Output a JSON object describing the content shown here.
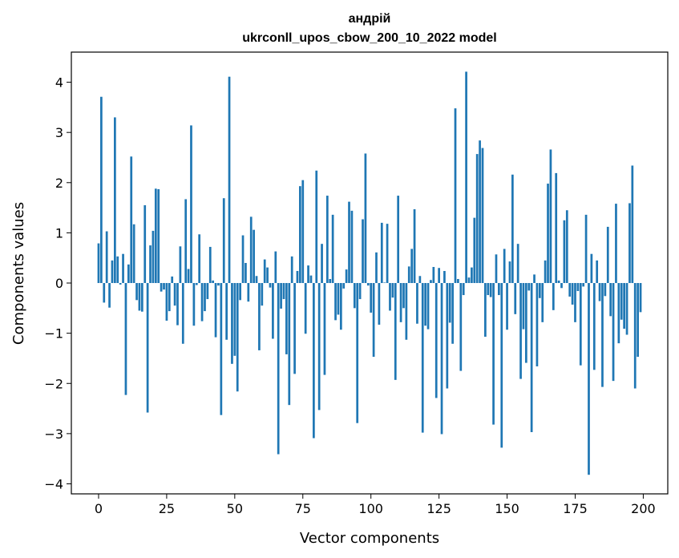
{
  "chart_data": {
    "type": "bar",
    "title": "андрій",
    "subtitle": "ukrconll_upos_cbow_200_10_2022 model",
    "xlabel": "Vector components",
    "ylabel": "Components values",
    "xlim": [
      -10,
      209
    ],
    "ylim": [
      -4.2,
      4.6
    ],
    "xticks": [
      0,
      25,
      50,
      75,
      100,
      125,
      150,
      175,
      200
    ],
    "yticks": [
      -4,
      -3,
      -2,
      -1,
      0,
      1,
      2,
      3,
      4
    ],
    "xtick_labels": [
      "0",
      "25",
      "50",
      "75",
      "100",
      "125",
      "150",
      "175",
      "200"
    ],
    "ytick_labels": [
      "−4",
      "−3",
      "−2",
      "−1",
      "0",
      "1",
      "2",
      "3",
      "4"
    ],
    "grid": false,
    "color": "#1f77b4",
    "x_start": 0,
    "values": [
      0.79,
      3.71,
      -0.39,
      1.03,
      -0.49,
      0.45,
      3.3,
      0.53,
      -0.03,
      0.58,
      -2.23,
      0.37,
      2.52,
      1.17,
      -0.34,
      -0.55,
      -0.57,
      1.55,
      -2.58,
      0.75,
      1.04,
      1.88,
      1.87,
      -0.17,
      -0.13,
      -0.75,
      -0.56,
      0.13,
      -0.45,
      -0.84,
      0.73,
      -1.21,
      1.67,
      0.28,
      3.14,
      -0.85,
      -0.04,
      0.97,
      -0.76,
      -0.56,
      -0.32,
      0.72,
      0.05,
      -1.08,
      -0.05,
      -2.63,
      1.69,
      -1.13,
      4.11,
      -1.61,
      -1.45,
      -2.16,
      -0.34,
      0.95,
      0.4,
      -0.37,
      1.32,
      1.06,
      0.14,
      -1.34,
      -0.45,
      0.47,
      0.31,
      -0.09,
      -1.11,
      0.63,
      -3.41,
      -0.51,
      -0.32,
      -1.42,
      -2.43,
      0.53,
      -1.81,
      0.24,
      1.93,
      2.05,
      -1.01,
      0.35,
      0.15,
      -3.09,
      2.24,
      -2.53,
      0.78,
      -1.83,
      1.74,
      0.08,
      1.36,
      -0.74,
      -0.63,
      -0.93,
      -0.11,
      0.27,
      1.62,
      1.44,
      -0.5,
      -2.79,
      -0.32,
      1.27,
      2.58,
      -0.05,
      -0.59,
      -1.47,
      0.61,
      -0.83,
      1.2,
      0.01,
      1.18,
      -0.55,
      -0.29,
      -1.93,
      1.74,
      -0.78,
      -0.5,
      -1.13,
      0.33,
      0.68,
      1.47,
      -0.81,
      0.14,
      -2.98,
      -0.85,
      -0.92,
      0.06,
      0.32,
      -2.29,
      0.3,
      -3.01,
      0.24,
      -2.1,
      -0.79,
      -1.21,
      3.48,
      0.08,
      -1.75,
      -0.24,
      4.21,
      0.11,
      0.31,
      1.3,
      2.57,
      2.84,
      2.69,
      -1.07,
      -0.24,
      -0.28,
      -2.82,
      0.57,
      -0.24,
      -3.28,
      0.68,
      -0.93,
      0.43,
      2.16,
      -0.62,
      0.78,
      -1.91,
      -0.92,
      -1.59,
      -0.15,
      -2.97,
      0.17,
      -1.66,
      -0.3,
      -0.78,
      0.45,
      1.98,
      2.66,
      -0.54,
      2.19,
      0.05,
      -0.1,
      1.25,
      1.45,
      -0.27,
      -0.43,
      -0.78,
      -0.16,
      -1.64,
      -0.07,
      1.36,
      -3.82,
      0.58,
      -1.73,
      0.45,
      -0.36,
      -2.07,
      -0.26,
      1.12,
      -0.66,
      -1.95,
      1.58,
      -1.2,
      -0.73,
      -0.91,
      -1.03,
      1.59,
      2.34,
      -2.1,
      -1.47,
      -0.58
    ]
  }
}
